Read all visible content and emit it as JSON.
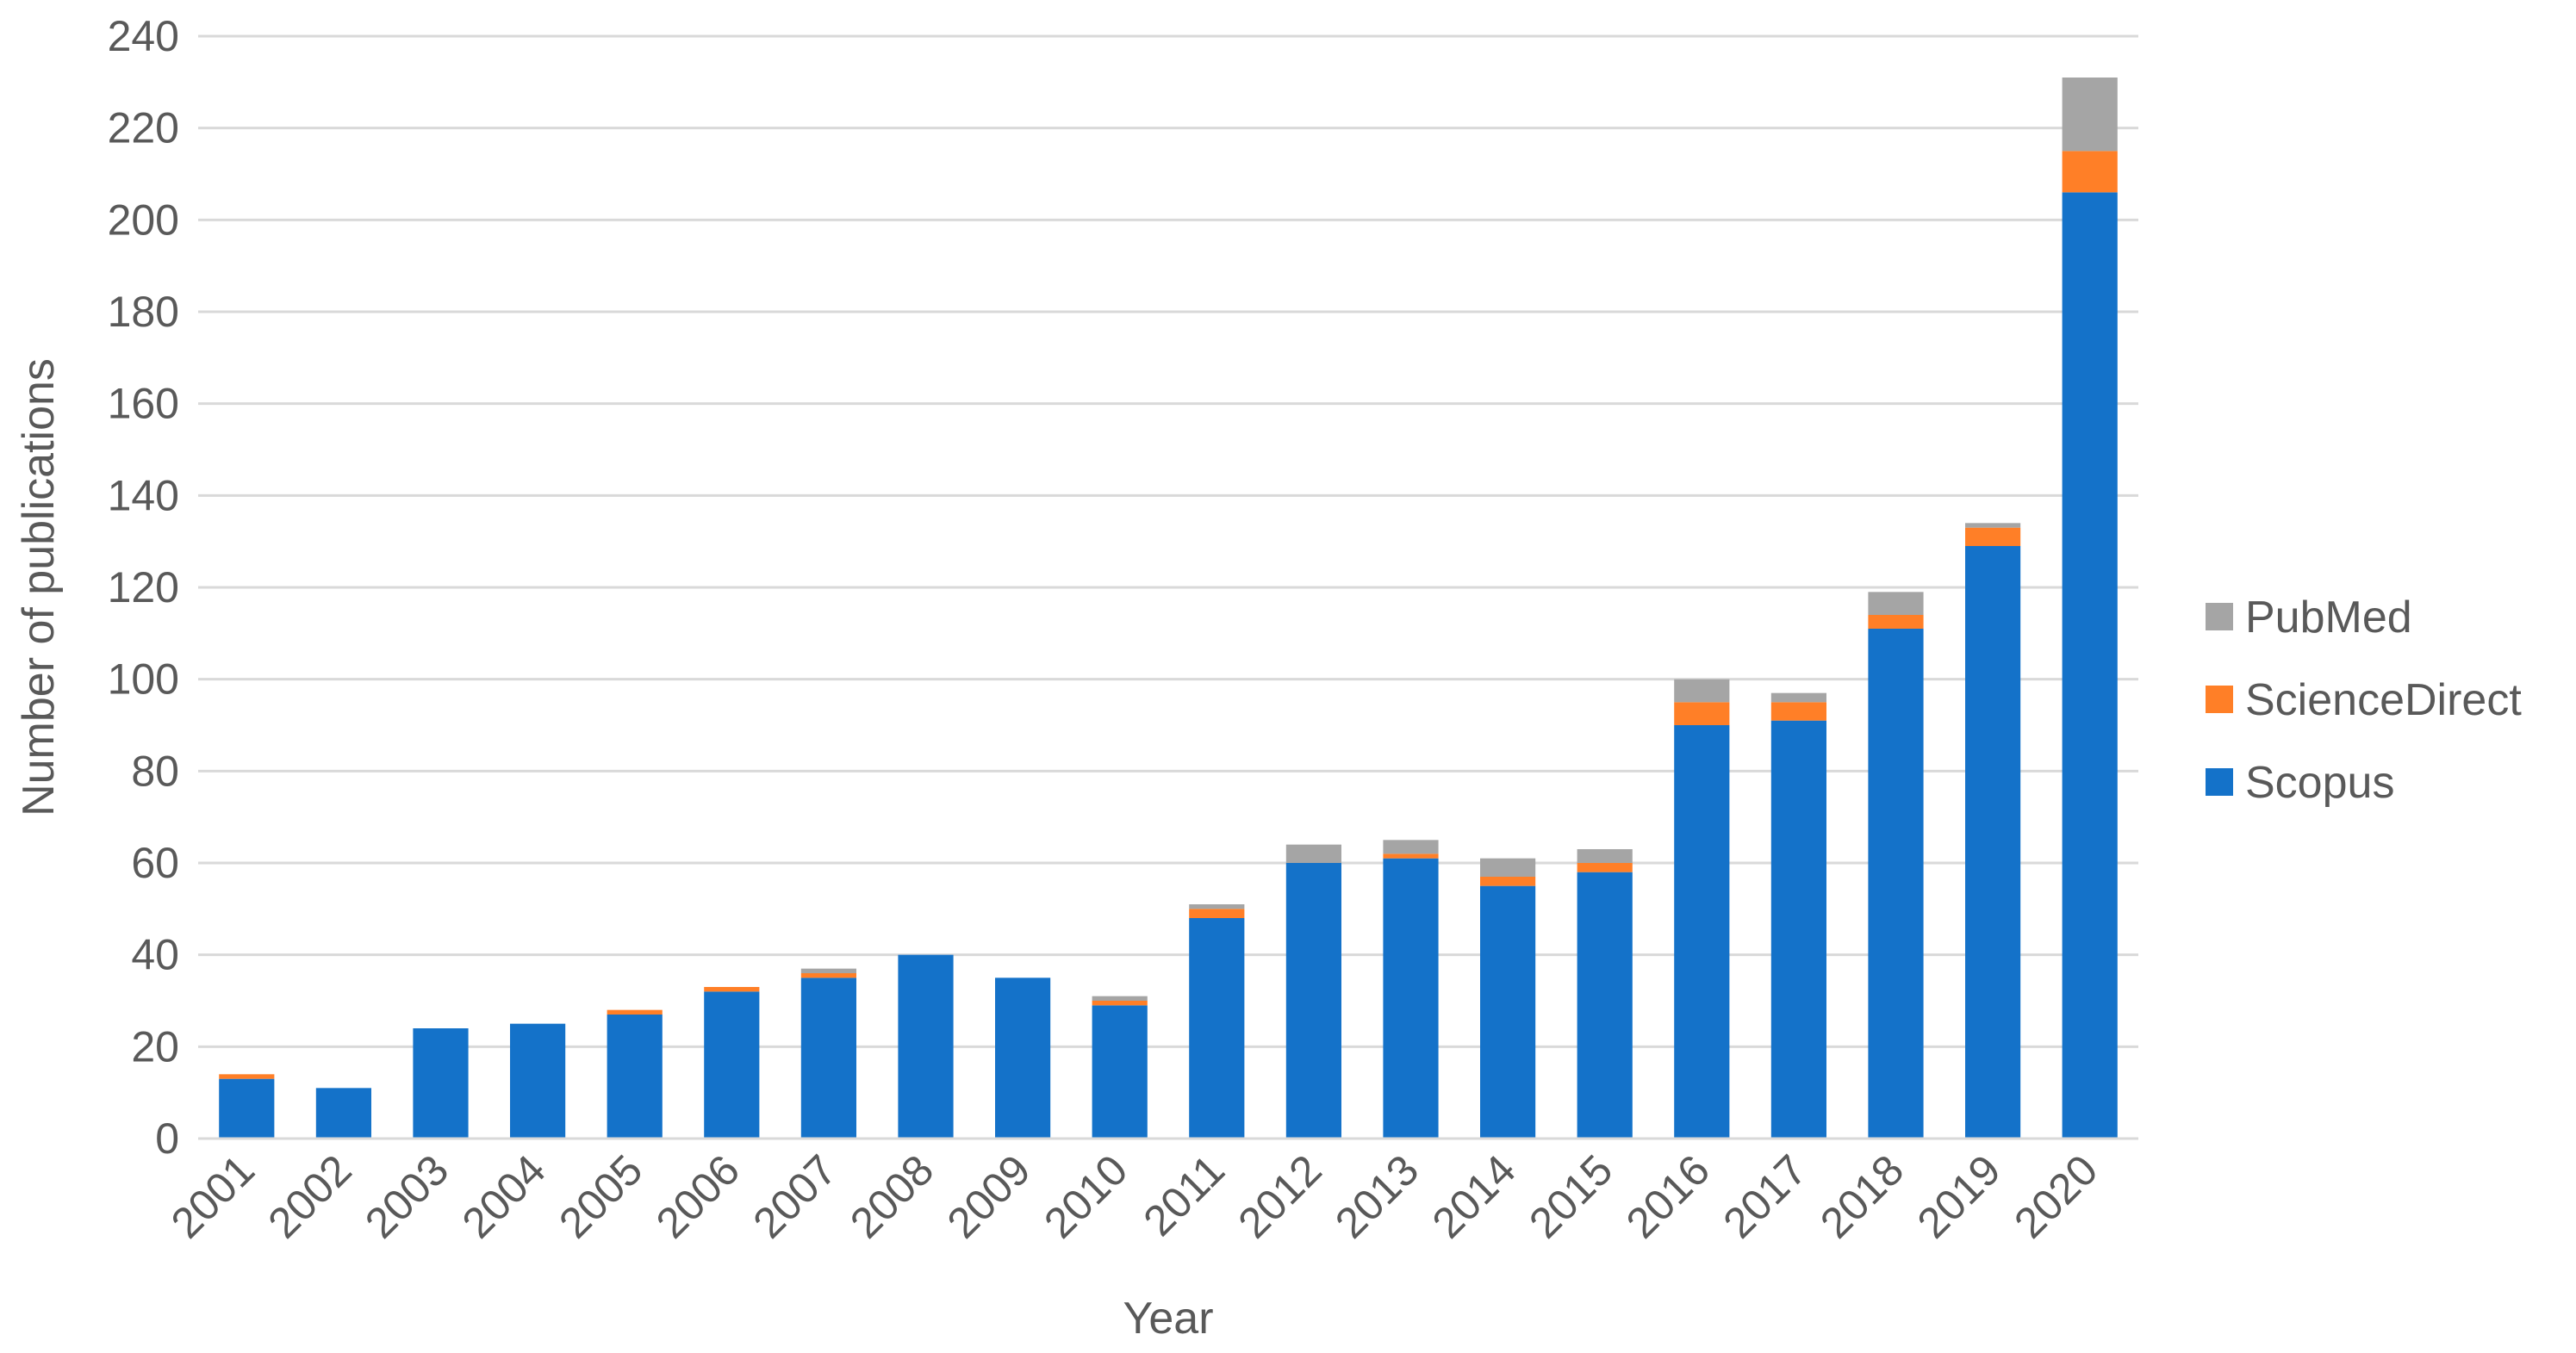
{
  "chart_data": {
    "type": "bar",
    "stacked": true,
    "title": "",
    "xlabel": "Year",
    "ylabel": "Number of publications",
    "ylim": [
      0,
      240
    ],
    "yticks": [
      0,
      20,
      40,
      60,
      80,
      100,
      120,
      140,
      160,
      180,
      200,
      220,
      240
    ],
    "grid": true,
    "legend_position": "right",
    "categories": [
      "2001",
      "2002",
      "2003",
      "2004",
      "2005",
      "2006",
      "2007",
      "2008",
      "2009",
      "2010",
      "2011",
      "2012",
      "2013",
      "2014",
      "2015",
      "2016",
      "2017",
      "2018",
      "2019",
      "2020"
    ],
    "series": [
      {
        "name": "Scopus",
        "color": "#1472c9",
        "values": [
          13,
          11,
          24,
          25,
          27,
          32,
          35,
          40,
          35,
          29,
          48,
          60,
          61,
          55,
          58,
          90,
          91,
          111,
          129,
          206
        ]
      },
      {
        "name": "ScienceDirect",
        "color": "#ff7f27",
        "values": [
          1,
          0,
          0,
          0,
          1,
          1,
          1,
          0,
          0,
          1,
          2,
          0,
          1,
          2,
          2,
          5,
          4,
          3,
          4,
          9
        ]
      },
      {
        "name": "PubMed",
        "color": "#a5a5a5",
        "values": [
          0,
          0,
          0,
          0,
          0,
          0,
          1,
          0,
          0,
          1,
          1,
          4,
          3,
          4,
          3,
          5,
          2,
          5,
          1,
          16
        ]
      }
    ],
    "legend_order": [
      "PubMed",
      "ScienceDirect",
      "Scopus"
    ]
  }
}
